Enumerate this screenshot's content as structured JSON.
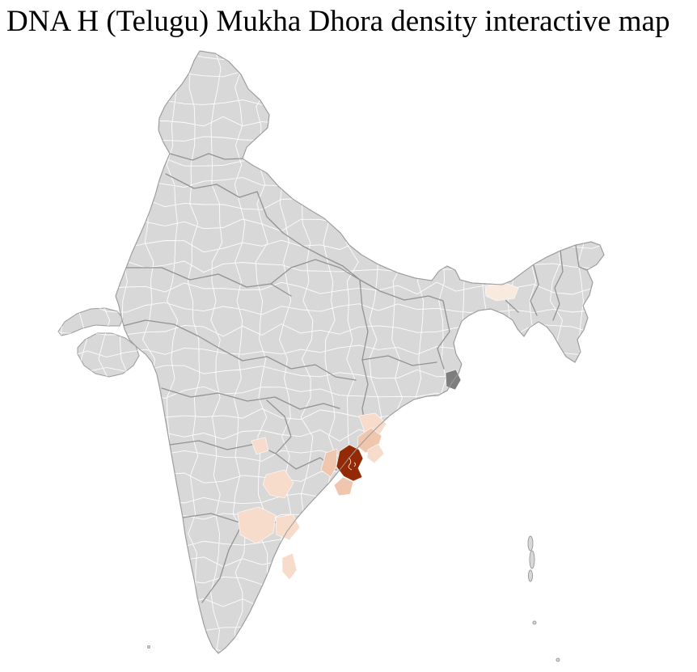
{
  "page": {
    "title": "DNA H (Telugu) Mukha Dhora density interactive map",
    "background": "#ffffff"
  },
  "map": {
    "kind": "choropleth-india-districts",
    "base_fill": "#d8d8d8",
    "outline_color": "#9c9c9c",
    "district_line_color": "#ffffff",
    "state_line_color": "#8b8b8b",
    "palette": {
      "high": "#932a05",
      "medium": "#f1c6ae",
      "low": "#f7dccb",
      "faint": "#f9eae0",
      "neutral_dark": "#7e7e7e"
    },
    "density_levels": [
      {
        "level": "high",
        "color": "#932a05"
      },
      {
        "level": "medium",
        "color": "#f1c6ae"
      },
      {
        "level": "low",
        "color": "#f7dccb"
      },
      {
        "level": "faint",
        "color": "#f9eae0"
      },
      {
        "level": "neutral_dark",
        "color": "#7e7e7e"
      }
    ],
    "regions": [
      {
        "id": "hl-high-1",
        "level": "high"
      },
      {
        "id": "hl-med-1",
        "level": "medium"
      },
      {
        "id": "hl-med-2",
        "level": "medium"
      },
      {
        "id": "hl-med-3",
        "level": "medium"
      },
      {
        "id": "hl-low-1",
        "level": "low"
      },
      {
        "id": "hl-low-2",
        "level": "low"
      },
      {
        "id": "hl-low-3",
        "level": "low"
      },
      {
        "id": "hl-low-4",
        "level": "low"
      },
      {
        "id": "hl-low-5",
        "level": "low"
      },
      {
        "id": "hl-low-6",
        "level": "low"
      },
      {
        "id": "hl-low-7",
        "level": "low"
      },
      {
        "id": "hl-faint-1",
        "level": "faint"
      },
      {
        "id": "hl-gray-1",
        "level": "neutral_dark"
      }
    ]
  }
}
